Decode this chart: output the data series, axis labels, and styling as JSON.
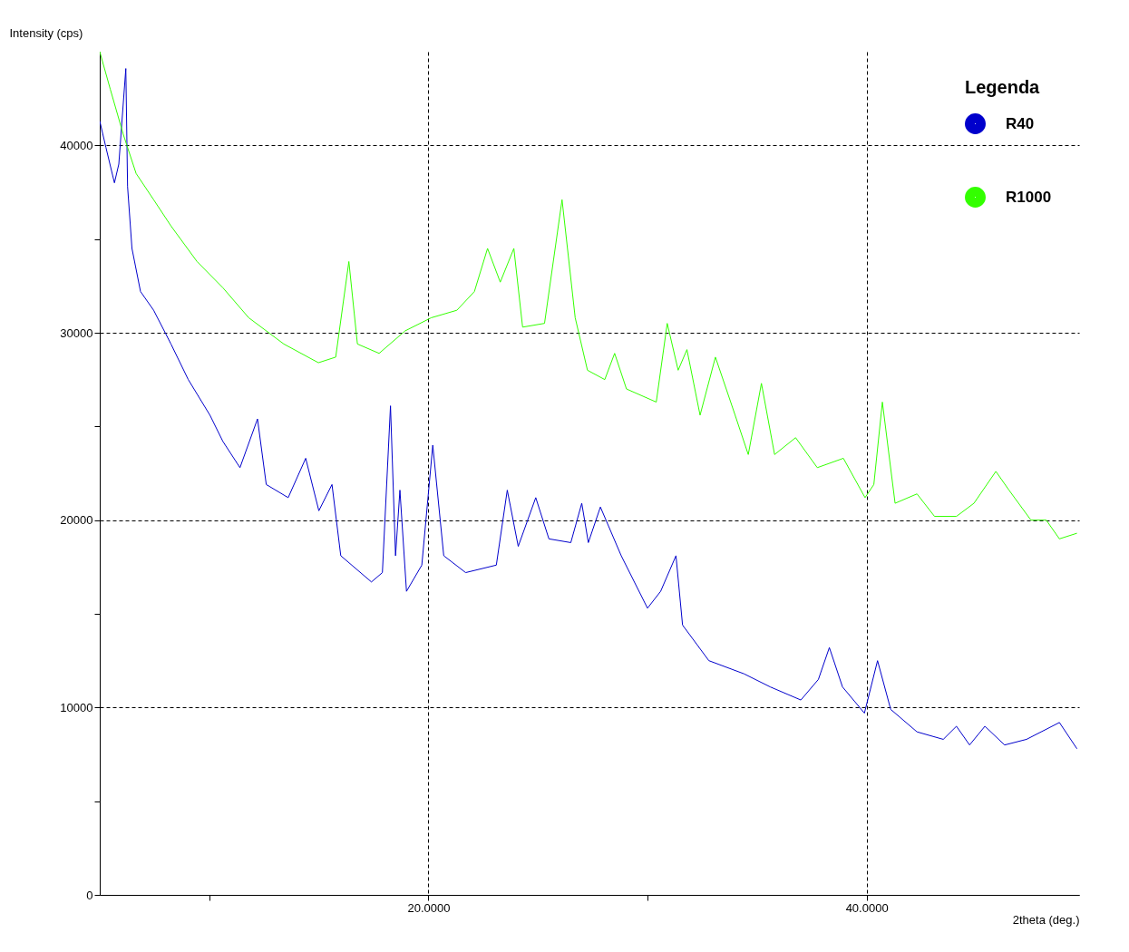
{
  "chart_data": {
    "type": "line",
    "xlabel": "2theta (deg.)",
    "ylabel": "Intensity (cps)",
    "legend_title": "Legenda",
    "xlim": [
      5,
      49.7
    ],
    "ylim": [
      0,
      45000
    ],
    "xticks": [
      {
        "value": 10,
        "label": null
      },
      {
        "value": 20,
        "label": "20.0000"
      },
      {
        "value": 30,
        "label": null
      },
      {
        "value": 40,
        "label": "40.0000"
      }
    ],
    "yticks": [
      0,
      {
        "value": 5000,
        "label": null
      },
      10000,
      {
        "value": 15000,
        "label": null
      },
      20000,
      {
        "value": 25000,
        "label": null
      },
      30000,
      {
        "value": 35000,
        "label": null
      },
      40000
    ],
    "grid": true,
    "legend": "top right",
    "line_style": "solid",
    "marker": "none",
    "series": [
      {
        "name": "R40",
        "color": "#0000cc",
        "x": [
          5.0,
          5.28,
          5.67,
          5.87,
          6.19,
          6.27,
          6.47,
          6.86,
          7.46,
          8.25,
          9.04,
          10.03,
          10.62,
          11.4,
          12.2,
          12.6,
          13.6,
          14.4,
          15.0,
          15.6,
          16.0,
          17.4,
          17.9,
          18.27,
          18.5,
          18.7,
          19.0,
          19.7,
          20.2,
          20.7,
          21.7,
          23.1,
          23.6,
          24.1,
          24.9,
          25.5,
          26.5,
          27.0,
          27.3,
          27.85,
          28.8,
          30.0,
          30.6,
          31.3,
          31.6,
          32.8,
          34.4,
          35.6,
          37.0,
          37.8,
          38.3,
          38.9,
          39.9,
          40.5,
          41.1,
          42.3,
          43.5,
          44.1,
          44.7,
          45.4,
          46.3,
          47.3,
          48.8,
          49.6
        ],
        "values": [
          41300,
          39900,
          38000,
          39000,
          44100,
          37800,
          34500,
          32200,
          31200,
          29400,
          27500,
          25600,
          24200,
          22800,
          25400,
          21900,
          21200,
          23300,
          20500,
          21900,
          18100,
          16700,
          17200,
          26100,
          18100,
          21600,
          16200,
          17600,
          24000,
          18100,
          17200,
          17600,
          21600,
          18600,
          21200,
          19000,
          18800,
          20900,
          18800,
          20700,
          18100,
          15300,
          16200,
          18100,
          14400,
          12500,
          11800,
          11100,
          10400,
          11500,
          13200,
          11100,
          9700,
          12500,
          9900,
          8700,
          8300,
          9000,
          8000,
          9000,
          8000,
          8300,
          9200,
          7800
        ]
      },
      {
        "name": "R1000",
        "color": "#33ff00",
        "x": [
          5.0,
          5.48,
          6.07,
          6.66,
          7.46,
          8.25,
          9.44,
          10.62,
          11.8,
          13.4,
          14.98,
          15.77,
          16.37,
          16.76,
          17.75,
          18.94,
          20.13,
          21.3,
          22.1,
          22.7,
          23.28,
          23.9,
          24.3,
          25.3,
          26.1,
          26.7,
          27.26,
          28.05,
          28.5,
          29.04,
          30.4,
          30.9,
          31.4,
          31.8,
          32.4,
          33.1,
          34.0,
          34.6,
          35.2,
          35.8,
          36.76,
          37.75,
          38.94,
          39.93,
          40.33,
          40.72,
          41.3,
          42.3,
          43.1,
          44.1,
          44.9,
          45.9,
          46.5,
          47.5,
          48.2,
          48.8,
          49.6
        ],
        "values": [
          45000,
          43000,
          40600,
          38500,
          37100,
          35700,
          33800,
          32400,
          30800,
          29400,
          28400,
          28700,
          33800,
          29400,
          28900,
          30100,
          30800,
          31200,
          32200,
          34500,
          32700,
          34500,
          30300,
          30500,
          37100,
          30800,
          28000,
          27500,
          28900,
          27000,
          26300,
          30500,
          28000,
          29100,
          25600,
          28700,
          25600,
          23500,
          27300,
          23500,
          24400,
          22800,
          23300,
          21200,
          21900,
          26300,
          20900,
          21400,
          20200,
          20200,
          20900,
          22600,
          21600,
          20000,
          20000,
          19000,
          19300
        ]
      }
    ]
  }
}
